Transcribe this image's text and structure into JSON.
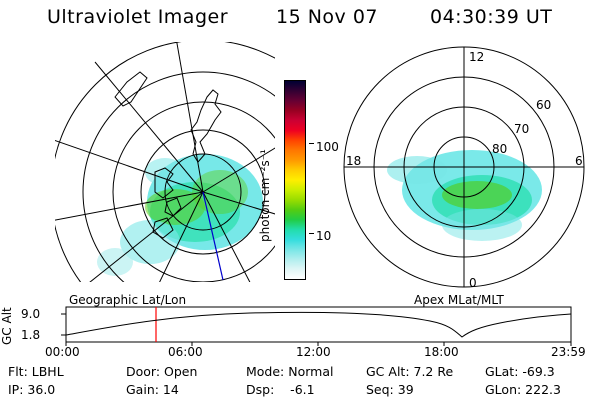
{
  "header": {
    "instrument": "Ultraviolet Imager",
    "date": "15 Nov 07",
    "time": "04:30:39 UT"
  },
  "colorbar": {
    "label": "photon cm⁻²s⁻¹",
    "ticks": [
      "100",
      "10"
    ],
    "colors": [
      "#000033",
      "#330033",
      "#660033",
      "#990022",
      "#cc0033",
      "#ee0022",
      "#ff4400",
      "#ff7700",
      "#ff9900",
      "#ffcc00",
      "#ffee00",
      "#ccee00",
      "#99dd00",
      "#55cc11",
      "#22cc44",
      "#22ddaa",
      "#33dddd",
      "#77e6e6",
      "#b0eeee",
      "#dff6f6",
      "#ffffff"
    ]
  },
  "left_panel": {
    "caption": "Geographic Lat/Lon"
  },
  "right_panel": {
    "caption": "Apex MLat/MLT",
    "hour_labels": {
      "top": "12",
      "bottom": "0",
      "left": "18",
      "right": "6"
    },
    "lat_labels": [
      "60",
      "70",
      "80"
    ]
  },
  "altitude_plot": {
    "axis_label": "GC Alt",
    "y_ticks": [
      "9.0",
      "1.8"
    ],
    "x_ticks": [
      "00:00",
      "06:00",
      "12:00",
      "18:00",
      "23:59"
    ],
    "marker_color": "#ff0000"
  },
  "info": {
    "flt": "Flt: LBHL",
    "ip": "IP: 36.0",
    "door": "Door: Open",
    "gain": "Gain: 14",
    "mode": "Mode: Normal",
    "dsp": "Dsp:    -6.1",
    "gc_alt": "GC Alt: 7.2 Re",
    "seq": "Seq: 39",
    "glat": "GLat: -69.3",
    "glon": "GLon: 222.3"
  }
}
